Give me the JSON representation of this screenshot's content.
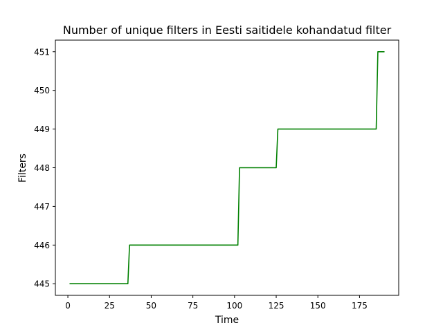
{
  "chart_data": {
    "type": "line",
    "title": "Number of unique filters in Eesti saitidele kohandatud filter",
    "xlabel": "Time",
    "ylabel": "Filters",
    "xlim": [
      -7.5,
      198.5
    ],
    "ylim": [
      444.7,
      451.3
    ],
    "xticks": [
      0,
      25,
      50,
      75,
      100,
      125,
      150,
      175
    ],
    "yticks": [
      445,
      446,
      447,
      448,
      449,
      450,
      451
    ],
    "grid": false,
    "legend": "none",
    "series": [
      {
        "color": "#008000",
        "x": [
          1,
          36,
          37,
          102,
          103,
          125,
          126,
          185,
          186,
          190
        ],
        "y": [
          445,
          445,
          446,
          446,
          448,
          448,
          449,
          449,
          451,
          451
        ]
      }
    ]
  }
}
